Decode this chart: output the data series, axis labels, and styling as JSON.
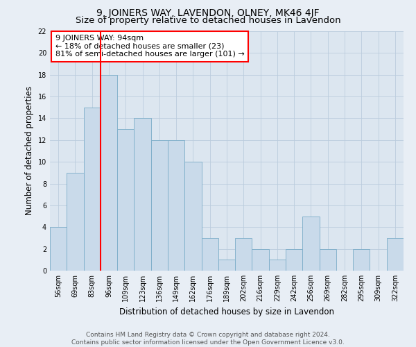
{
  "title": "9, JOINERS WAY, LAVENDON, OLNEY, MK46 4JF",
  "subtitle": "Size of property relative to detached houses in Lavendon",
  "xlabel": "Distribution of detached houses by size in Lavendon",
  "ylabel": "Number of detached properties",
  "categories": [
    "56sqm",
    "69sqm",
    "83sqm",
    "96sqm",
    "109sqm",
    "123sqm",
    "136sqm",
    "149sqm",
    "162sqm",
    "176sqm",
    "189sqm",
    "202sqm",
    "216sqm",
    "229sqm",
    "242sqm",
    "256sqm",
    "269sqm",
    "282sqm",
    "295sqm",
    "309sqm",
    "322sqm"
  ],
  "values": [
    4,
    9,
    15,
    18,
    13,
    14,
    12,
    12,
    10,
    3,
    1,
    3,
    2,
    1,
    2,
    5,
    2,
    0,
    2,
    0,
    3
  ],
  "bar_color": "#c9daea",
  "bar_edge_color": "#7aacc8",
  "redline_x": 2.5,
  "annotation_line1": "9 JOINERS WAY: 94sqm",
  "annotation_line2": "← 18% of detached houses are smaller (23)",
  "annotation_line3": "81% of semi-detached houses are larger (101) →",
  "annotation_box_color": "white",
  "annotation_box_edge": "red",
  "redline_color": "red",
  "ylim": [
    0,
    22
  ],
  "yticks": [
    0,
    2,
    4,
    6,
    8,
    10,
    12,
    14,
    16,
    18,
    20,
    22
  ],
  "grid_color": "#bbccdd",
  "background_color": "#e8eef5",
  "plot_bg_color": "#dce6f0",
  "footer1": "Contains HM Land Registry data © Crown copyright and database right 2024.",
  "footer2": "Contains public sector information licensed under the Open Government Licence v3.0.",
  "title_fontsize": 10,
  "subtitle_fontsize": 9.5,
  "axis_label_fontsize": 8.5,
  "tick_fontsize": 7,
  "annotation_fontsize": 8,
  "footer_fontsize": 6.5
}
